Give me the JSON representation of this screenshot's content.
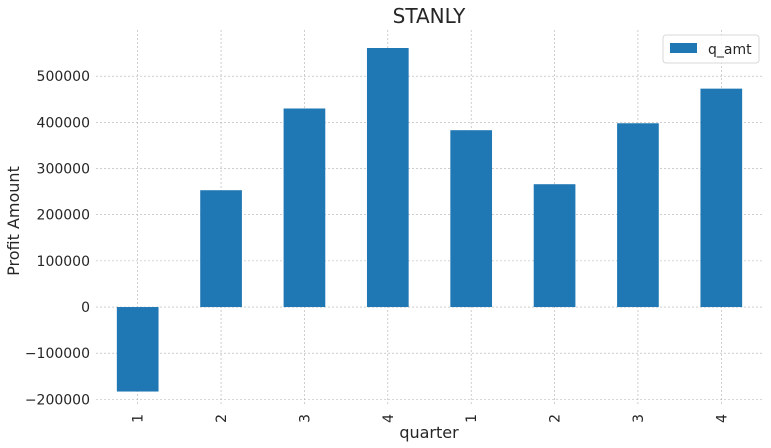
{
  "chart_data": {
    "type": "bar",
    "title": "STANLY",
    "xlabel": "quarter",
    "ylabel": "Profit Amount",
    "categories": [
      "1",
      "2",
      "3",
      "4",
      "1",
      "2",
      "3",
      "4"
    ],
    "series": [
      {
        "name": "q_amt",
        "values": [
          -183000,
          253000,
          430000,
          561000,
          383000,
          266000,
          398000,
          473000
        ]
      }
    ],
    "yticks": [
      -200000,
      -100000,
      0,
      100000,
      200000,
      300000,
      400000,
      500000
    ],
    "ytick_labels": [
      "−200000",
      "−100000",
      "0",
      "100000",
      "200000",
      "300000",
      "400000",
      "500000"
    ],
    "ylim": [
      -210000,
      600000
    ],
    "grid": true,
    "legend_position": "top-right",
    "colors": {
      "bar": "#1f77b4",
      "grid": "#b0b0b0",
      "text": "#262626"
    }
  }
}
